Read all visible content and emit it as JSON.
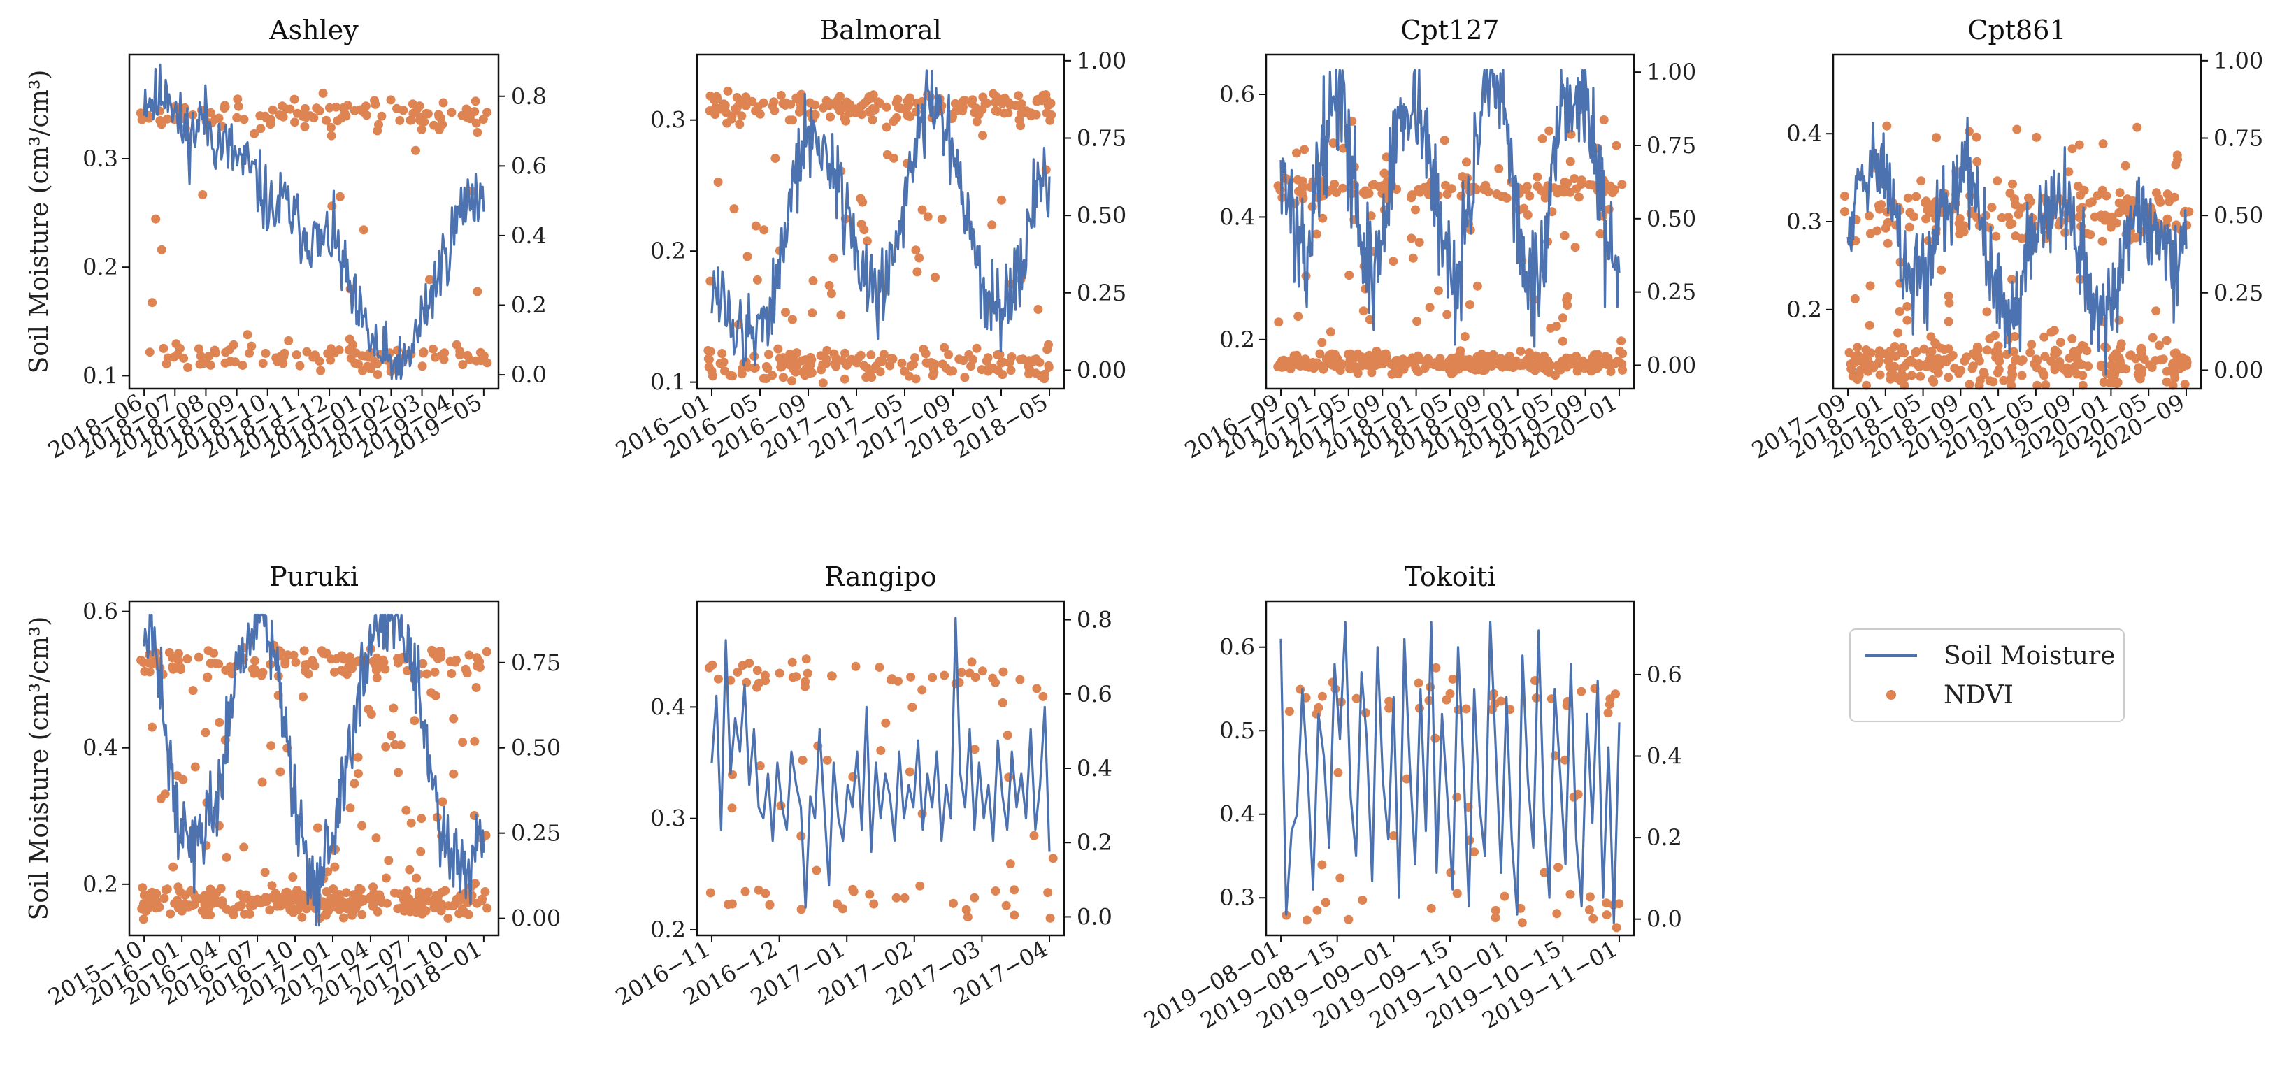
{
  "figure": {
    "y_label": "Soil Moisture (cm³/cm³)",
    "legend": {
      "placement": "right",
      "items": [
        {
          "label": "Soil Moisture",
          "kind": "line",
          "color": "#4c72b0"
        },
        {
          "label": "NDVI",
          "kind": "dot",
          "color": "#dd8452"
        }
      ]
    }
  },
  "chart_data": [
    {
      "type": "line+scatter",
      "title": "Ashley",
      "ylabel": "Soil Moisture (cm³/cm³)",
      "ylim": [
        0.088,
        0.396
      ],
      "y_ticks": [
        0.1,
        0.2,
        0.3
      ],
      "y_tick_labels": [
        "0.1",
        "0.2",
        "0.3"
      ],
      "y2lim": [
        -0.04,
        0.92
      ],
      "y2_ticks": [
        0.0,
        0.2,
        0.4,
        0.6,
        0.8
      ],
      "y2_tick_labels": [
        "0.0",
        "0.2",
        "0.4",
        "0.6",
        "0.8"
      ],
      "x_tick_labels": [
        "2018−06",
        "2018−07",
        "2018−08",
        "2018−09",
        "2018−10",
        "2018−11",
        "2018−12",
        "2019−01",
        "2019−02",
        "2019−03",
        "2019−04",
        "2019−05"
      ],
      "soil_moisture": [
        0.36,
        0.35,
        0.37,
        0.33,
        0.32,
        0.34,
        0.32,
        0.31,
        0.3,
        0.29,
        0.27,
        0.25,
        0.26,
        0.24,
        0.23,
        0.22,
        0.23,
        0.2,
        0.16,
        0.14,
        0.12,
        0.11,
        0.1,
        0.13,
        0.16,
        0.19,
        0.22,
        0.25,
        0.27,
        0.26
      ],
      "sm_seed": 11,
      "sm_n": 300,
      "sm_noise": 0.35,
      "ndvi": {
        "seed": 21,
        "n": 230,
        "bands": [
          [
            0.05,
            0.4
          ],
          [
            0.75,
            0.5
          ]
        ],
        "band_spread": 0.07,
        "mid": 0.1
      }
    },
    {
      "type": "line+scatter",
      "title": "Balmoral",
      "ylim": [
        0.095,
        0.35
      ],
      "y_ticks": [
        0.1,
        0.2,
        0.3
      ],
      "y_tick_labels": [
        "0.1",
        "0.2",
        "0.3"
      ],
      "y2lim": [
        -0.06,
        1.02
      ],
      "y2_ticks": [
        0.0,
        0.25,
        0.5,
        0.75,
        1.0
      ],
      "y2_tick_labels": [
        "0.00",
        "0.25",
        "0.50",
        "0.75",
        "1.00"
      ],
      "x_tick_labels": [
        "2016−01",
        "2016−05",
        "2016−09",
        "2017−01",
        "2017−05",
        "2017−09",
        "2018−01",
        "2018−05"
      ],
      "soil_moisture": [
        0.18,
        0.16,
        0.14,
        0.13,
        0.14,
        0.16,
        0.2,
        0.25,
        0.28,
        0.29,
        0.27,
        0.25,
        0.22,
        0.18,
        0.16,
        0.18,
        0.22,
        0.26,
        0.3,
        0.32,
        0.3,
        0.26,
        0.22,
        0.18,
        0.16,
        0.15,
        0.17,
        0.2,
        0.24,
        0.26
      ],
      "sm_seed": 12,
      "sm_n": 320,
      "sm_noise": 0.42,
      "ndvi": {
        "seed": 22,
        "n": 380,
        "bands": [
          [
            0.02,
            0.45
          ],
          [
            0.85,
            0.45
          ]
        ],
        "band_spread": 0.07,
        "mid": 0.1
      }
    },
    {
      "type": "line+scatter",
      "title": "Cpt127",
      "ylim": [
        0.12,
        0.665
      ],
      "y_ticks": [
        0.2,
        0.4,
        0.6
      ],
      "y_tick_labels": [
        "0.2",
        "0.4",
        "0.6"
      ],
      "y2lim": [
        -0.08,
        1.06
      ],
      "y2_ticks": [
        0.0,
        0.25,
        0.5,
        0.75,
        1.0
      ],
      "y2_tick_labels": [
        "0.00",
        "0.25",
        "0.50",
        "0.75",
        "1.00"
      ],
      "x_tick_labels": [
        "2016−09",
        "2017−01",
        "2017−05",
        "2017−09",
        "2018−01",
        "2018−05",
        "2018−09",
        "2019−01",
        "2019−05",
        "2019−09",
        "2020−01"
      ],
      "soil_moisture": [
        0.5,
        0.4,
        0.3,
        0.45,
        0.55,
        0.6,
        0.5,
        0.35,
        0.3,
        0.4,
        0.55,
        0.6,
        0.58,
        0.45,
        0.35,
        0.3,
        0.4,
        0.55,
        0.6,
        0.58,
        0.45,
        0.3,
        0.28,
        0.4,
        0.55,
        0.6,
        0.6,
        0.5,
        0.35,
        0.3
      ],
      "sm_seed": 13,
      "sm_n": 380,
      "sm_noise": 0.55,
      "sm_clip": 0.64,
      "ndvi": {
        "seed": 23,
        "n": 520,
        "bands": [
          [
            0.01,
            0.6
          ],
          [
            0.6,
            0.2
          ]
        ],
        "band_spread": 0.05,
        "mid": 0.2
      }
    },
    {
      "type": "line+scatter",
      "title": "Cpt861",
      "ylim": [
        0.11,
        0.49
      ],
      "y_ticks": [
        0.2,
        0.3,
        0.4
      ],
      "y_tick_labels": [
        "0.2",
        "0.3",
        "0.4"
      ],
      "y2lim": [
        -0.06,
        1.02
      ],
      "y2_ticks": [
        0.0,
        0.25,
        0.5,
        0.75,
        1.0
      ],
      "y2_tick_labels": [
        "0.00",
        "0.25",
        "0.50",
        "0.75",
        "1.00"
      ],
      "x_tick_labels": [
        "2017−09",
        "2018−01",
        "2018−05",
        "2018−09",
        "2019−01",
        "2019−05",
        "2019−09",
        "2020−01",
        "2020−05",
        "2020−09"
      ],
      "soil_moisture": [
        0.3,
        0.34,
        0.38,
        0.36,
        0.3,
        0.24,
        0.22,
        0.25,
        0.3,
        0.34,
        0.36,
        0.32,
        0.26,
        0.22,
        0.2,
        0.23,
        0.28,
        0.32,
        0.34,
        0.3,
        0.25,
        0.2,
        0.18,
        0.22,
        0.28,
        0.32,
        0.3,
        0.26,
        0.24,
        0.28
      ],
      "sm_seed": 14,
      "sm_n": 380,
      "sm_noise": 0.5,
      "ndvi": {
        "seed": 24,
        "n": 480,
        "bands": [
          [
            0.02,
            0.55
          ],
          [
            0.5,
            0.3
          ]
        ],
        "band_spread": 0.12,
        "mid": 0.15
      }
    },
    {
      "type": "line+scatter",
      "title": "Puruki",
      "ylabel": "Soil Moisture (cm³/cm³)",
      "ylim": [
        0.125,
        0.615
      ],
      "y_ticks": [
        0.2,
        0.4,
        0.6
      ],
      "y_tick_labels": [
        "0.2",
        "0.4",
        "0.6"
      ],
      "y2lim": [
        -0.05,
        0.93
      ],
      "y2_ticks": [
        0.0,
        0.25,
        0.5,
        0.75
      ],
      "y2_tick_labels": [
        "0.00",
        "0.25",
        "0.50",
        "0.75"
      ],
      "x_tick_labels": [
        "2015−10",
        "2016−01",
        "2016−04",
        "2016−07",
        "2016−10",
        "2017−01",
        "2017−04",
        "2017−07",
        "2017−10",
        "2018−01"
      ],
      "soil_moisture": [
        0.58,
        0.55,
        0.4,
        0.28,
        0.25,
        0.28,
        0.32,
        0.4,
        0.52,
        0.58,
        0.59,
        0.55,
        0.45,
        0.3,
        0.22,
        0.2,
        0.25,
        0.35,
        0.45,
        0.55,
        0.58,
        0.59,
        0.58,
        0.52,
        0.42,
        0.32,
        0.25,
        0.22,
        0.24,
        0.3
      ],
      "sm_seed": 15,
      "sm_n": 360,
      "sm_noise": 0.4,
      "sm_clip": 0.595,
      "ndvi": {
        "seed": 25,
        "n": 480,
        "bands": [
          [
            0.05,
            0.5
          ],
          [
            0.75,
            0.3
          ]
        ],
        "band_spread": 0.06,
        "mid": 0.2
      }
    },
    {
      "type": "line+scatter",
      "title": "Rangipo",
      "ylim": [
        0.195,
        0.495
      ],
      "y_ticks": [
        0.2,
        0.3,
        0.4
      ],
      "y_tick_labels": [
        "0.2",
        "0.3",
        "0.4"
      ],
      "y2lim": [
        -0.05,
        0.85
      ],
      "y2_ticks": [
        0.0,
        0.2,
        0.4,
        0.6,
        0.8
      ],
      "y2_tick_labels": [
        "0.0",
        "0.2",
        "0.4",
        "0.6",
        "0.8"
      ],
      "x_tick_labels": [
        "2016−11",
        "2016−12",
        "2017−01",
        "2017−02",
        "2017−03",
        "2017−04"
      ],
      "soil_moisture": [
        0.35,
        0.41,
        0.29,
        0.46,
        0.34,
        0.39,
        0.36,
        0.42,
        0.33,
        0.38,
        0.31,
        0.3,
        0.34,
        0.28,
        0.35,
        0.31,
        0.29,
        0.36,
        0.33,
        0.31,
        0.22,
        0.32,
        0.3,
        0.38,
        0.31,
        0.24,
        0.35,
        0.3,
        0.28,
        0.33,
        0.31,
        0.36,
        0.29,
        0.4,
        0.27,
        0.35,
        0.3,
        0.34,
        0.32,
        0.28,
        0.36,
        0.3,
        0.33,
        0.31,
        0.37,
        0.29,
        0.34,
        0.31,
        0.36,
        0.28,
        0.33,
        0.3,
        0.48,
        0.34,
        0.31,
        0.38,
        0.29,
        0.35,
        0.3,
        0.33,
        0.28,
        0.37,
        0.32,
        0.29,
        0.36,
        0.31,
        0.34,
        0.3,
        0.38,
        0.29,
        0.33,
        0.4,
        0.27
      ],
      "sm_seed": 16,
      "sm_n": 0,
      "sm_noise": 0,
      "ndvi": {
        "seed": 26,
        "n": 95,
        "bands": [
          [
            0.05,
            0.3
          ],
          [
            0.65,
            0.45
          ]
        ],
        "band_spread": 0.08,
        "mid": 0.25
      }
    },
    {
      "type": "line+scatter",
      "title": "Tokoiti",
      "ylim": [
        0.255,
        0.655
      ],
      "y_ticks": [
        0.3,
        0.4,
        0.5,
        0.6
      ],
      "y_tick_labels": [
        "0.3",
        "0.4",
        "0.5",
        "0.6"
      ],
      "y2lim": [
        -0.04,
        0.78
      ],
      "y2_ticks": [
        0.0,
        0.2,
        0.4,
        0.6
      ],
      "y2_tick_labels": [
        "0.0",
        "0.2",
        "0.4",
        "0.6"
      ],
      "x_tick_labels": [
        "2019−08−01",
        "2019−08−15",
        "2019−09−01",
        "2019−09−15",
        "2019−10−01",
        "2019−10−15",
        "2019−11−01"
      ],
      "soil_moisture": [
        0.61,
        0.28,
        0.38,
        0.4,
        0.55,
        0.45,
        0.31,
        0.52,
        0.47,
        0.36,
        0.58,
        0.49,
        0.63,
        0.42,
        0.35,
        0.57,
        0.49,
        0.32,
        0.6,
        0.44,
        0.37,
        0.54,
        0.3,
        0.61,
        0.46,
        0.34,
        0.55,
        0.38,
        0.63,
        0.33,
        0.52,
        0.42,
        0.31,
        0.6,
        0.46,
        0.29,
        0.55,
        0.41,
        0.35,
        0.63,
        0.48,
        0.33,
        0.54,
        0.37,
        0.28,
        0.59,
        0.44,
        0.36,
        0.62,
        0.4,
        0.3,
        0.55,
        0.45,
        0.34,
        0.58,
        0.37,
        0.29,
        0.52,
        0.39,
        0.56,
        0.3,
        0.48,
        0.27,
        0.51
      ],
      "sm_seed": 17,
      "sm_n": 0,
      "sm_noise": 0,
      "ndvi": {
        "seed": 27,
        "n": 80,
        "bands": [
          [
            0.03,
            0.3
          ],
          [
            0.55,
            0.4
          ]
        ],
        "band_spread": 0.07,
        "mid": 0.3
      }
    }
  ]
}
